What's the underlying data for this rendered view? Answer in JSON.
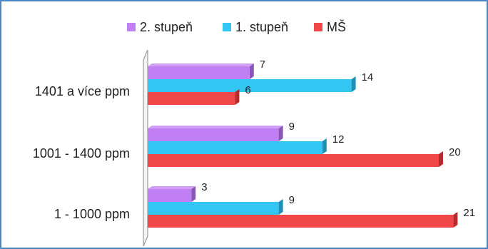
{
  "chart_data": {
    "type": "bar",
    "orientation": "horizontal",
    "categories": [
      "1401 a více ppm",
      "1001 - 1400 ppm",
      "1 - 1000 ppm"
    ],
    "series": [
      {
        "name": "2. stupeň",
        "values": [
          7,
          9,
          3
        ]
      },
      {
        "name": "1. stupeň",
        "values": [
          14,
          12,
          9
        ]
      },
      {
        "name": "MŠ",
        "values": [
          6,
          20,
          21
        ]
      }
    ],
    "data_labels": true,
    "legend_position": "top",
    "grid": false,
    "xlim": [
      0,
      21
    ]
  },
  "colors": {
    "series": [
      "#c07ff2",
      "#33c6f2",
      "#f04848"
    ],
    "series_dark": [
      "#8a55b8",
      "#1e8fb5",
      "#b52c2c"
    ],
    "frame": "#4a86c8",
    "axis_wall": "#9a9a9a"
  }
}
